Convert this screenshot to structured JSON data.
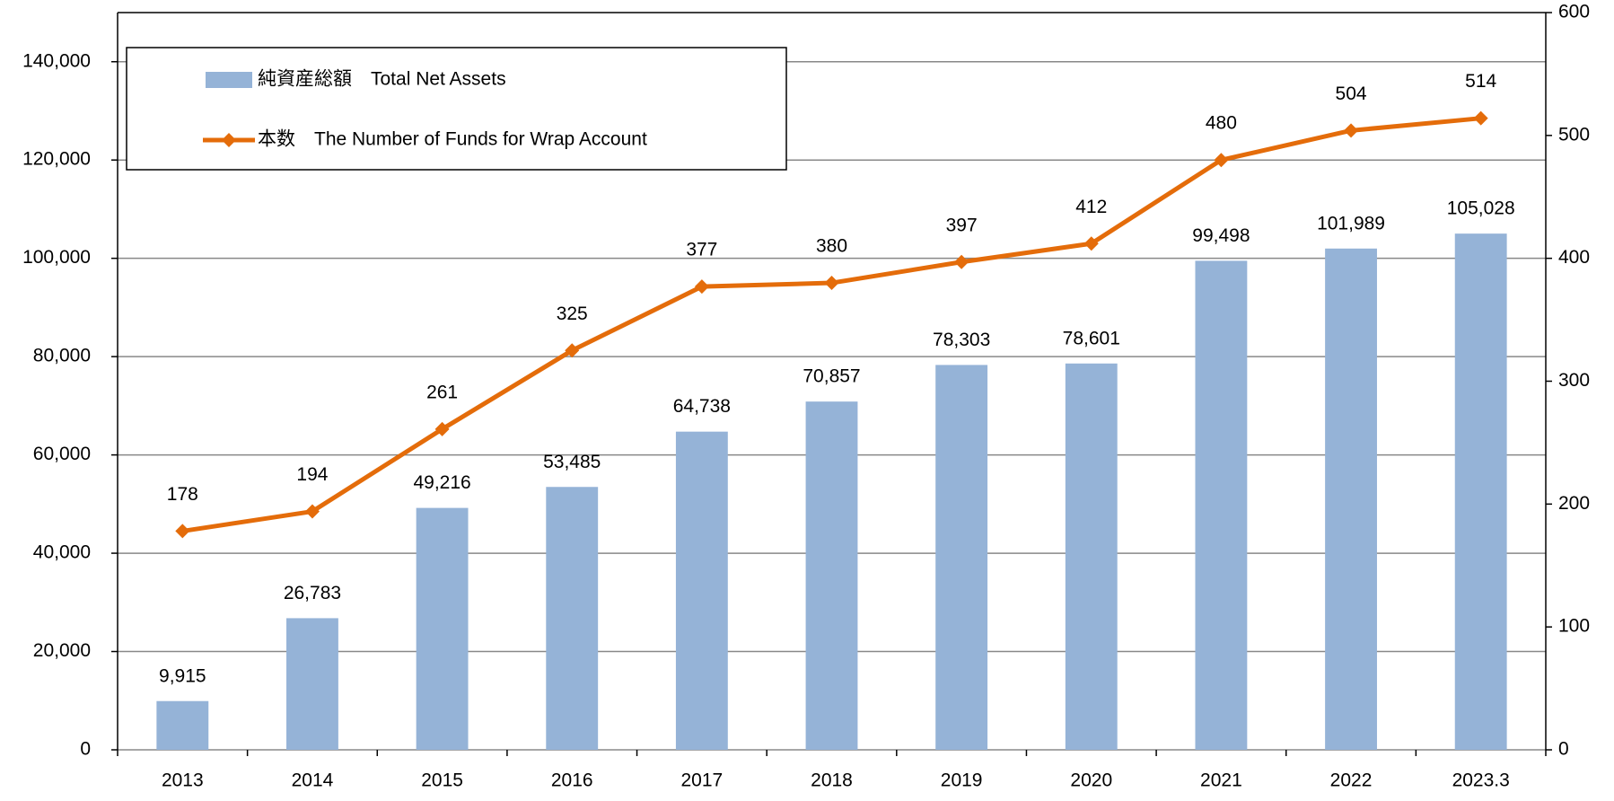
{
  "chart_data": {
    "type": "bar-line",
    "categories": [
      "2013",
      "2014",
      "2015",
      "2016",
      "2017",
      "2018",
      "2019",
      "2020",
      "2021",
      "2022",
      "2023.3"
    ],
    "series": [
      {
        "name": "純資産総額　Total Net Assets",
        "color": "#95b3d7",
        "type": "bar",
        "values": [
          9915,
          26783,
          49216,
          53485,
          64738,
          70857,
          78303,
          78601,
          99498,
          101989,
          105028
        ],
        "value_labels": [
          "9,915",
          "26,783",
          "49,216",
          "53,485",
          "64,738",
          "70,857",
          "78,303",
          "78,601",
          "99,498",
          "101,989",
          "105,028"
        ]
      },
      {
        "name": "本数　The Number of Funds for Wrap Account",
        "color": "#e46c0a",
        "type": "line",
        "axis": "y2",
        "values": [
          178,
          194,
          261,
          325,
          377,
          380,
          397,
          412,
          480,
          504,
          514
        ]
      }
    ],
    "ylim": [
      0,
      150000
    ],
    "yticks": [
      0,
      {
        "value": 20000,
        "label": "20,000"
      },
      {
        "value": 40000,
        "label": "40,000"
      },
      {
        "value": 60000,
        "label": "60,000"
      },
      {
        "value": 80000,
        "label": "80,000"
      },
      {
        "value": 100000,
        "label": "100,000"
      },
      {
        "value": 120000,
        "label": "120,000"
      },
      {
        "value": 140000,
        "label": "140,000"
      }
    ],
    "y2lim": [
      0,
      600
    ],
    "y2ticks": [
      0,
      100,
      200,
      300,
      400,
      500,
      600
    ],
    "grid": true,
    "legend": "upper left"
  }
}
